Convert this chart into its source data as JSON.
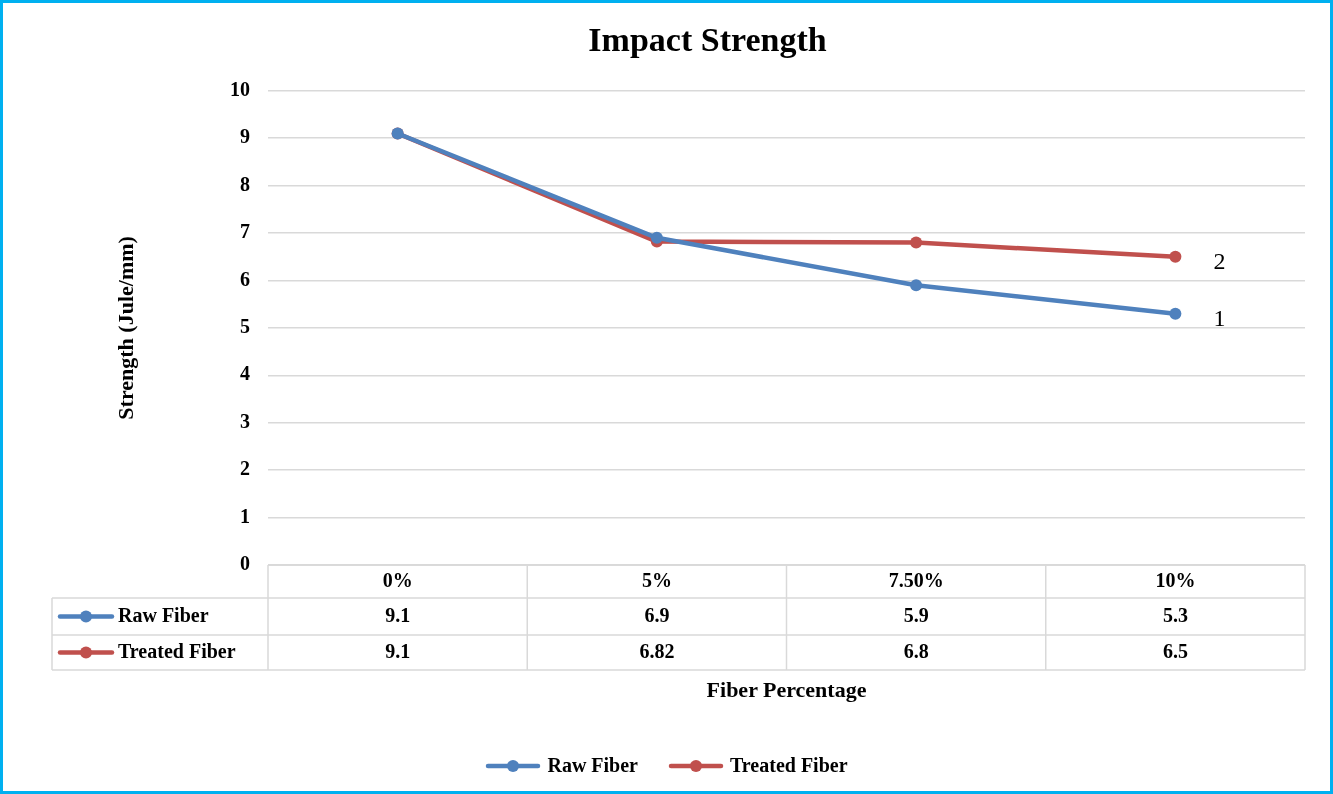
{
  "chart_data": {
    "type": "line",
    "title": "Impact Strength",
    "xlabel": "Fiber Percentage",
    "ylabel": "Strength (Jule/mm)",
    "categories": [
      "0%",
      "5%",
      "7.50%",
      "10%"
    ],
    "series": [
      {
        "name": "Raw Fiber",
        "color": "#4f81bd",
        "values": [
          9.1,
          6.9,
          5.9,
          5.3
        ]
      },
      {
        "name": "Treated Fiber",
        "color": "#c0504d",
        "values": [
          9.1,
          6.82,
          6.8,
          6.5
        ]
      }
    ],
    "ylim": [
      0,
      10
    ],
    "yticks": [
      0,
      1,
      2,
      3,
      4,
      5,
      6,
      7,
      8,
      9,
      10
    ],
    "grid": "y",
    "legend": "bottom",
    "marker": "circle",
    "line_style": "solid",
    "data_labels": true,
    "annotations": [
      {
        "text": "1",
        "x": "10%",
        "y": 5.3
      },
      {
        "text": "2",
        "x": "10%",
        "y": 6.5
      }
    ]
  }
}
